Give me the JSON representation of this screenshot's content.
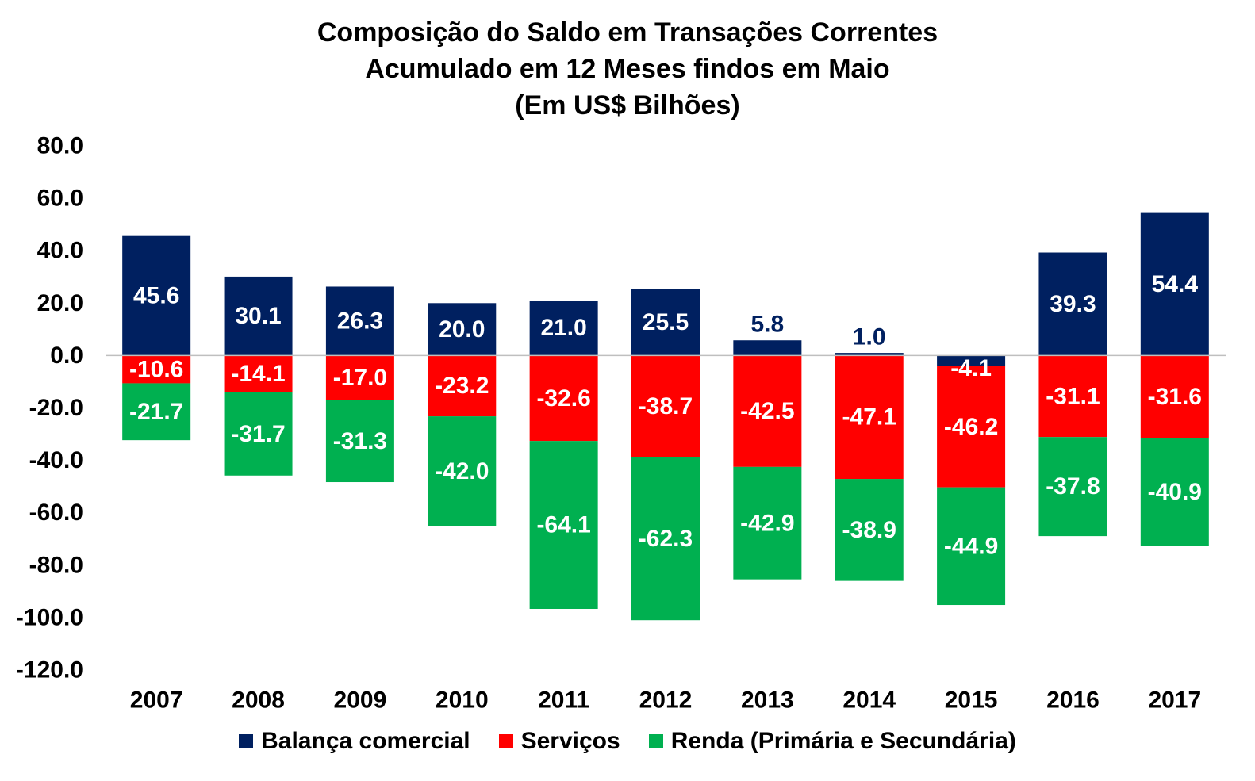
{
  "chart_data": {
    "type": "bar",
    "stacked": true,
    "title_lines": [
      "Composição do Saldo em Transações Correntes",
      "Acumulado em 12 Meses findos em Maio",
      "(Em US$ Bilhões)"
    ],
    "categories": [
      "2007",
      "2008",
      "2009",
      "2010",
      "2011",
      "2012",
      "2013",
      "2014",
      "2015",
      "2016",
      "2017"
    ],
    "series": [
      {
        "name": "Balança comercial",
        "color": "#002060",
        "values": [
          45.6,
          30.1,
          26.3,
          20.0,
          21.0,
          25.5,
          5.8,
          1.0,
          -4.1,
          39.3,
          54.4
        ]
      },
      {
        "name": "Serviços",
        "color": "#ff0000",
        "values": [
          -10.6,
          -14.1,
          -17.0,
          -23.2,
          -32.6,
          -38.7,
          -42.5,
          -47.1,
          -46.2,
          -31.1,
          -31.6
        ]
      },
      {
        "name": "Renda (Primária e Secundária)",
        "color": "#00b050",
        "values": [
          -21.7,
          -31.7,
          -31.3,
          -42.0,
          -64.1,
          -62.3,
          -42.9,
          -38.9,
          -44.9,
          -37.8,
          -40.9
        ]
      }
    ],
    "ylim": [
      -120,
      80
    ],
    "yticks": [
      80,
      60,
      40,
      20,
      0,
      -20,
      -40,
      -60,
      -80,
      -100,
      -120
    ],
    "grid": false,
    "legend_position": "bottom"
  }
}
